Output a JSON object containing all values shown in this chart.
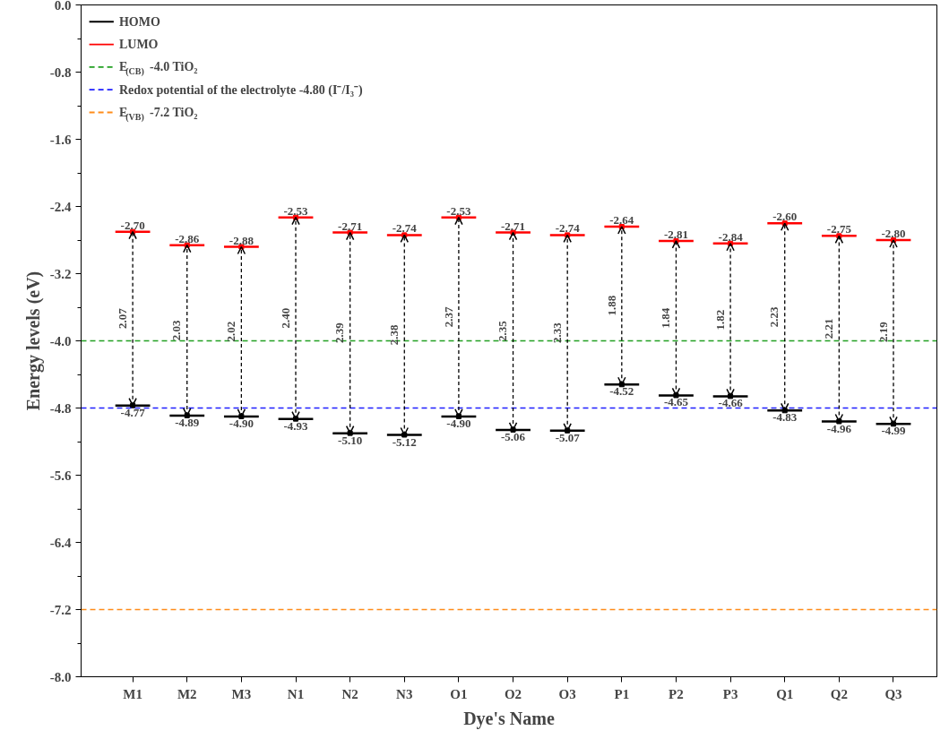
{
  "chart_data": {
    "type": "scatter",
    "xlabel": "Dye's Name",
    "ylabel": "Energy levels (eV)",
    "categories": [
      "M1",
      "M2",
      "M3",
      "N1",
      "N2",
      "N3",
      "O1",
      "O2",
      "O3",
      "P1",
      "P2",
      "P3",
      "Q1",
      "Q2",
      "Q3"
    ],
    "series": [
      {
        "name": "HOMO",
        "color": "#000000",
        "values": [
          -4.77,
          -4.89,
          -4.9,
          -4.93,
          -5.1,
          -5.12,
          -4.9,
          -5.06,
          -5.07,
          -4.52,
          -4.65,
          -4.66,
          -4.83,
          -4.96,
          -4.99
        ],
        "value_labels": [
          "-4.77",
          "-4.89",
          "-4.90",
          "-4.93",
          "-5.10",
          "-5.12",
          "-4.90",
          "-5.06",
          "-5.07",
          "-4.52",
          "-4.65",
          "-4.66",
          "-4.83",
          "-4.96",
          "-4.99"
        ]
      },
      {
        "name": "LUMO",
        "color": "#ff0000",
        "values": [
          -2.7,
          -2.86,
          -2.88,
          -2.53,
          -2.71,
          -2.74,
          -2.53,
          -2.71,
          -2.74,
          -2.64,
          -2.81,
          -2.84,
          -2.6,
          -2.75,
          -2.8
        ],
        "value_labels": [
          "-2.70",
          "-2.86",
          "-2.88",
          "-2.53",
          "-2.71",
          "-2.74",
          "-2.53",
          "-2.71",
          "-2.74",
          "-2.64",
          "-2.81",
          "-2.84",
          "-2.60",
          "-2.75",
          "-2.80"
        ]
      }
    ],
    "ref_lines": [
      {
        "axis": "y",
        "value": -4.0,
        "label": "E$_{(CB)}$ -4.0 TiO₂",
        "color": "#22a022",
        "line_style": "dashed"
      },
      {
        "axis": "y",
        "value": -4.8,
        "label": "Redox potential of the electrolyte -4.80 (I⁻/I₃⁻)",
        "color": "#1f1fff",
        "line_style": "dashed"
      },
      {
        "axis": "y",
        "value": -7.2,
        "label": "E$_{(VB)}$ -7.2 TiO₂",
        "color": "#ff8c1a",
        "line_style": "dashed"
      }
    ],
    "annotations": [
      "2.07",
      "2.03",
      "2.02",
      "2.40",
      "2.39",
      "2.38",
      "2.37",
      "2.35",
      "2.33",
      "1.88",
      "1.84",
      "1.82",
      "2.23",
      "2.21",
      "2.19"
    ],
    "ylim": [
      -8.0,
      0.0
    ],
    "yticks": [
      {
        "value": 0.0,
        "label": "0.0"
      },
      -0.8,
      -1.6,
      -2.4,
      -3.2,
      {
        "value": -4.0,
        "label": "-4.0"
      },
      -4.8,
      -5.6,
      -6.4,
      -7.2,
      {
        "value": -8.0,
        "label": "-8.0"
      }
    ],
    "legend": "top left",
    "marker": "square"
  }
}
